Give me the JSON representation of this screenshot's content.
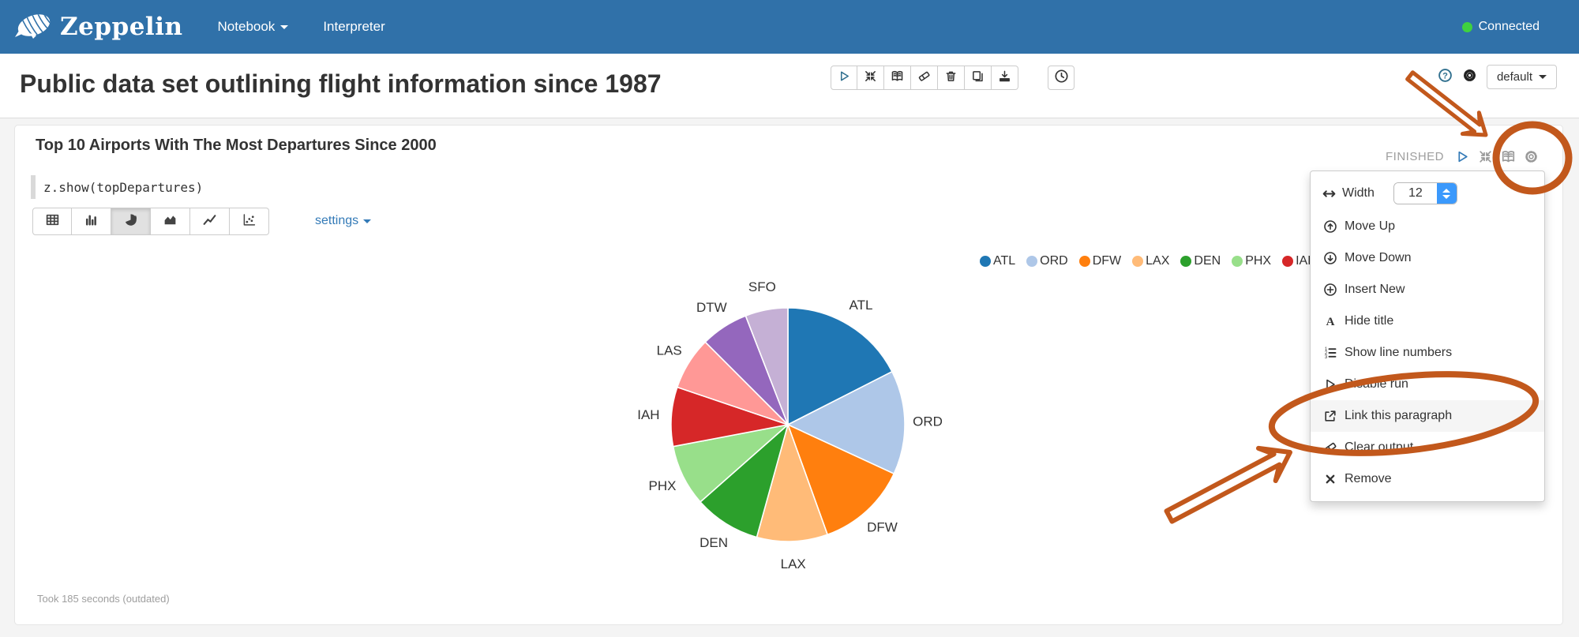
{
  "navbar": {
    "brand": "Zeppelin",
    "items": [
      {
        "label": "Notebook",
        "caret": true
      },
      {
        "label": "Interpreter",
        "caret": false
      }
    ],
    "connected_label": "Connected",
    "connected_color": "#3fd13f",
    "bar_color": "#3071a9"
  },
  "note_header": {
    "title": "Public data set outlining flight information since 1987",
    "toolbar_buttons": [
      {
        "icon": "play-icon",
        "name": "run-all-paragraphs-button"
      },
      {
        "icon": "shrink-icon",
        "name": "show-hide-paragraphs-button"
      },
      {
        "icon": "book-icon",
        "name": "show-hide-code-button"
      },
      {
        "icon": "eraser-icon",
        "name": "clear-all-output-button"
      },
      {
        "icon": "trash-icon",
        "name": "remove-note-button"
      },
      {
        "icon": "clone-icon",
        "name": "clone-note-button"
      },
      {
        "icon": "download-icon",
        "name": "export-note-button"
      }
    ],
    "scheduler_icon": "clock-icon",
    "interpreter_binding_label": "default"
  },
  "paragraph": {
    "title": "Top 10 Airports With The Most Departures Since 2000",
    "status": "FINISHED",
    "status_icons": [
      {
        "icon": "play-icon",
        "name": "run-paragraph-button"
      },
      {
        "icon": "shrink-icon",
        "name": "collapse-paragraph-button"
      },
      {
        "icon": "book-icon",
        "name": "toggle-editor-button"
      },
      {
        "icon": "gear-icon",
        "name": "paragraph-settings-button"
      }
    ],
    "code": "z.show(topDepartures)",
    "chart_tabs": [
      {
        "icon": "table-icon",
        "name": "tab-table",
        "active": false
      },
      {
        "icon": "barchart-icon",
        "name": "tab-bar-chart",
        "active": false
      },
      {
        "icon": "piechart-icon",
        "name": "tab-pie-chart",
        "active": true
      },
      {
        "icon": "areachart-icon",
        "name": "tab-area-chart",
        "active": false
      },
      {
        "icon": "linechart-icon",
        "name": "tab-line-chart",
        "active": false
      },
      {
        "icon": "scatterchart-icon",
        "name": "tab-scatter-chart",
        "active": false
      }
    ],
    "settings_label": "settings",
    "duration": "Took 185 seconds (outdated)"
  },
  "paragraph_menu": {
    "width_icon": "width-arrows-icon",
    "width_label": "Width",
    "width_value": "12",
    "items": [
      {
        "icon": "circle-up-icon",
        "label": "Move Up"
      },
      {
        "icon": "circle-down-icon",
        "label": "Move Down"
      },
      {
        "icon": "circle-plus-icon",
        "label": "Insert New"
      },
      {
        "icon": "font-icon",
        "label": "Hide title"
      },
      {
        "icon": "list-ol-icon",
        "label": "Show line numbers"
      },
      {
        "icon": "play-icon",
        "label": "Disable run"
      },
      {
        "icon": "external-link-icon",
        "label": "Link this paragraph",
        "highlighted": true
      },
      {
        "icon": "eraser-icon",
        "label": "Clear output"
      },
      {
        "icon": "x-icon",
        "label": "Remove"
      }
    ]
  },
  "chart_data": {
    "type": "pie",
    "title": "Top 10 Airports With The Most Departures Since 2000",
    "categories": [
      "ATL",
      "ORD",
      "DFW",
      "LAX",
      "DEN",
      "PHX",
      "IAH",
      "LAS",
      "DTW",
      "SFO"
    ],
    "values": [
      17.5,
      14.4,
      12.6,
      9.8,
      9.2,
      8.5,
      8.2,
      7.3,
      6.6,
      5.9
    ],
    "values_note": "percent of total departures, estimated from slice angles",
    "colors": [
      "#1f77b4",
      "#aec7e8",
      "#ff7f0e",
      "#ffbb78",
      "#2ca02c",
      "#98df8a",
      "#d62728",
      "#ff9896",
      "#9467bd",
      "#c5b0d5"
    ],
    "legend_position": "top-right",
    "legend_visible_items": 7,
    "labels_shown_on_slices": [
      "SFO",
      "DTW",
      "LAS",
      "IAH",
      "PHX",
      "DEN",
      "LAX",
      "DFW",
      "ORD",
      "ATL"
    ]
  },
  "annotations": {
    "color": "#c2581c",
    "shapes": [
      "arrow-to-paragraph-gear",
      "circle-around-paragraph-gear",
      "arrow-to-link-this-paragraph",
      "ellipse-around-link-this-paragraph"
    ]
  }
}
